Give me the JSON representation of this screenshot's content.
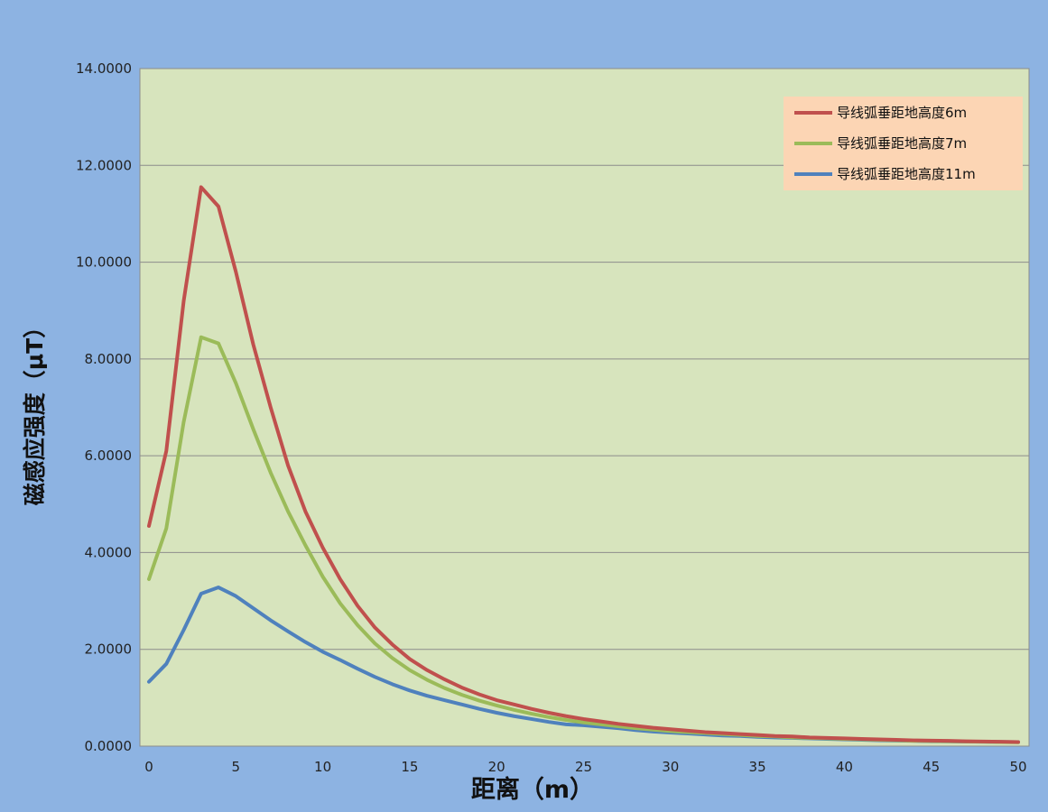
{
  "chart_data": {
    "type": "line",
    "title": "",
    "xlabel": "距离（m）",
    "ylabel": "磁感应强度（μT）",
    "xlim": [
      0,
      50
    ],
    "ylim": [
      0,
      14
    ],
    "x_ticks": [
      "0",
      "5",
      "10",
      "15",
      "20",
      "25",
      "30",
      "35",
      "40",
      "45",
      "50"
    ],
    "y_ticks": [
      "0.0000",
      "2.0000",
      "4.0000",
      "6.0000",
      "8.0000",
      "10.0000",
      "12.0000",
      "14.0000"
    ],
    "grid": "horizontal",
    "legend_position": "top-right",
    "x": [
      0,
      1,
      2,
      3,
      4,
      5,
      6,
      7,
      8,
      9,
      10,
      11,
      12,
      13,
      14,
      15,
      16,
      17,
      18,
      19,
      20,
      21,
      22,
      23,
      24,
      25,
      26,
      27,
      28,
      29,
      30,
      31,
      32,
      33,
      34,
      35,
      36,
      37,
      38,
      39,
      40,
      41,
      42,
      43,
      44,
      45,
      46,
      47,
      48,
      49,
      50
    ],
    "series": [
      {
        "name": "导线弧垂距地高度6m",
        "color": "#c0504d",
        "values": [
          4.55,
          6.1,
          9.2,
          11.55,
          11.15,
          9.8,
          8.3,
          7.0,
          5.8,
          4.85,
          4.1,
          3.45,
          2.9,
          2.45,
          2.1,
          1.8,
          1.57,
          1.38,
          1.21,
          1.07,
          0.95,
          0.86,
          0.77,
          0.69,
          0.62,
          0.56,
          0.51,
          0.46,
          0.42,
          0.38,
          0.35,
          0.32,
          0.29,
          0.27,
          0.25,
          0.23,
          0.21,
          0.2,
          0.18,
          0.17,
          0.16,
          0.15,
          0.14,
          0.13,
          0.12,
          0.115,
          0.11,
          0.1,
          0.095,
          0.09,
          0.085
        ]
      },
      {
        "name": "导线弧垂距地高度7m",
        "color": "#9bbb59",
        "values": [
          3.45,
          4.5,
          6.7,
          8.45,
          8.32,
          7.5,
          6.55,
          5.65,
          4.85,
          4.15,
          3.5,
          2.95,
          2.5,
          2.12,
          1.82,
          1.57,
          1.37,
          1.2,
          1.06,
          0.94,
          0.84,
          0.75,
          0.67,
          0.6,
          0.54,
          0.49,
          0.45,
          0.41,
          0.37,
          0.34,
          0.31,
          0.29,
          0.27,
          0.25,
          0.23,
          0.21,
          0.2,
          0.18,
          0.17,
          0.16,
          0.15,
          0.14,
          0.13,
          0.12,
          0.11,
          0.105,
          0.1,
          0.095,
          0.09,
          0.085,
          0.08
        ]
      },
      {
        "name": "导线弧垂距地高度11m",
        "color": "#4f81bd",
        "values": [
          1.33,
          1.7,
          2.4,
          3.15,
          3.28,
          3.1,
          2.85,
          2.6,
          2.37,
          2.15,
          1.95,
          1.78,
          1.6,
          1.43,
          1.28,
          1.15,
          1.04,
          0.95,
          0.86,
          0.77,
          0.69,
          0.62,
          0.56,
          0.5,
          0.45,
          0.43,
          0.4,
          0.37,
          0.33,
          0.3,
          0.28,
          0.26,
          0.24,
          0.22,
          0.21,
          0.19,
          0.18,
          0.17,
          0.16,
          0.15,
          0.14,
          0.13,
          0.12,
          0.115,
          0.11,
          0.1,
          0.097,
          0.093,
          0.09,
          0.087,
          0.083
        ]
      }
    ]
  }
}
